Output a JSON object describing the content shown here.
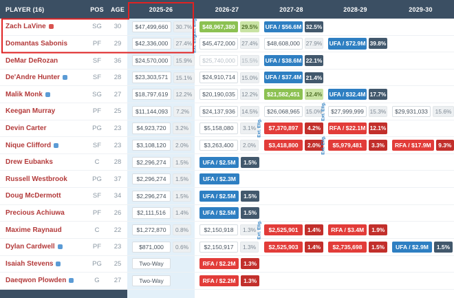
{
  "colors": {
    "header_bg": "#3b4f63",
    "annotation_red": "#e02222",
    "highlight_col": "#e3f0f9",
    "player_name": "#b33a3a",
    "green": "#8cc152",
    "blue": "#2e7fc2",
    "red": "#e23c39",
    "navy": "#42586c",
    "dark_red": "#c22f2b",
    "ext_elig": "#2e7fc2"
  },
  "header": {
    "player": "PLAYER (16)",
    "pos": "POS",
    "age": "AGE",
    "years": [
      "2025-26",
      "2026-27",
      "2027-28",
      "2028-29",
      "2029-30"
    ]
  },
  "labels": {
    "ext_elig": "Ext. Elig.",
    "two_way": "Two-Way"
  },
  "rows": [
    {
      "name": "Zach LaVine",
      "icon": "red",
      "pos": "SG",
      "age": "30",
      "cells": [
        {
          "value": "$47,499,660",
          "pct": "30.7%",
          "style": "plain"
        },
        {
          "value": "$48,967,380",
          "pct": "29.5%",
          "style": "green",
          "ext": true
        },
        {
          "value": "UFA / $56.6M",
          "pct": "32.5%",
          "style": "blue"
        },
        null,
        null
      ]
    },
    {
      "name": "Domantas Sabonis",
      "icon": null,
      "pos": "PF",
      "age": "29",
      "cells": [
        {
          "value": "$42,336,000",
          "pct": "27.4%",
          "style": "plain"
        },
        {
          "value": "$45,472,000",
          "pct": "27.4%",
          "style": "plain",
          "ext": true
        },
        {
          "value": "$48,608,000",
          "pct": "27.9%",
          "style": "plain"
        },
        {
          "value": "UFA / $72.9M",
          "pct": "39.8%",
          "style": "blue"
        },
        null
      ]
    },
    {
      "name": "DeMar DeRozan",
      "icon": null,
      "pos": "SF",
      "age": "36",
      "cells": [
        {
          "value": "$24,570,000",
          "pct": "15.9%",
          "style": "plain"
        },
        {
          "value": "$25,740,000",
          "pct": "15.5%",
          "style": "muted"
        },
        {
          "value": "UFA / $38.6M",
          "pct": "22.1%",
          "style": "blue"
        },
        null,
        null
      ]
    },
    {
      "name": "De'Andre Hunter",
      "icon": "blue",
      "pos": "SF",
      "age": "28",
      "cells": [
        {
          "value": "$23,303,571",
          "pct": "15.1%",
          "style": "plain"
        },
        {
          "value": "$24,910,714",
          "pct": "15.0%",
          "style": "plain"
        },
        {
          "value": "UFA / $37.4M",
          "pct": "21.4%",
          "style": "blue"
        },
        null,
        null
      ]
    },
    {
      "name": "Malik Monk",
      "icon": "blue",
      "pos": "SG",
      "age": "27",
      "cells": [
        {
          "value": "$18,797,619",
          "pct": "12.2%",
          "style": "plain"
        },
        {
          "value": "$20,190,035",
          "pct": "12.2%",
          "style": "plain"
        },
        {
          "value": "$21,582,451",
          "pct": "12.4%",
          "style": "green"
        },
        {
          "value": "UFA / $32.4M",
          "pct": "17.7%",
          "style": "blue"
        },
        null
      ]
    },
    {
      "name": "Keegan Murray",
      "icon": null,
      "pos": "PF",
      "age": "25",
      "cells": [
        {
          "value": "$11,144,093",
          "pct": "7.2%",
          "style": "plain"
        },
        {
          "value": "$24,137,936",
          "pct": "14.5%",
          "style": "plain"
        },
        {
          "value": "$26,068,965",
          "pct": "15.0%",
          "style": "plain"
        },
        {
          "value": "$27,999,999",
          "pct": "15.3%",
          "style": "plain",
          "ext": true
        },
        {
          "value": "$29,931,033",
          "pct": "15.6%",
          "style": "plain"
        }
      ]
    },
    {
      "name": "Devin Carter",
      "icon": null,
      "pos": "PG",
      "age": "23",
      "cells": [
        {
          "value": "$4,923,720",
          "pct": "3.2%",
          "style": "plain"
        },
        {
          "value": "$5,158,080",
          "pct": "3.1%",
          "style": "plain"
        },
        {
          "value": "$7,370,897",
          "pct": "4.2%",
          "style": "red",
          "ext": true
        },
        {
          "value": "RFA / $22.1M",
          "pct": "12.1%",
          "style": "red"
        },
        null
      ]
    },
    {
      "name": "Nique Clifford",
      "icon": "blue",
      "pos": "SF",
      "age": "23",
      "cells": [
        {
          "value": "$3,108,120",
          "pct": "2.0%",
          "style": "plain"
        },
        {
          "value": "$3,263,400",
          "pct": "2.0%",
          "style": "plain"
        },
        {
          "value": "$3,418,800",
          "pct": "2.0%",
          "style": "red"
        },
        {
          "value": "$5,979,481",
          "pct": "3.3%",
          "style": "red",
          "ext": true
        },
        {
          "value": "RFA / $17.9M",
          "pct": "9.3%",
          "style": "red"
        }
      ]
    },
    {
      "name": "Drew Eubanks",
      "icon": null,
      "pos": "C",
      "age": "28",
      "cells": [
        {
          "value": "$2,296,274",
          "pct": "1.5%",
          "style": "plain"
        },
        {
          "value": "UFA / $2.5M",
          "pct": "1.5%",
          "style": "blue"
        },
        null,
        null,
        null
      ]
    },
    {
      "name": "Russell Westbrook",
      "icon": null,
      "pos": "PG",
      "age": "37",
      "cells": [
        {
          "value": "$2,296,274",
          "pct": "1.5%",
          "style": "plain"
        },
        {
          "value": "UFA / $2.3M",
          "pct": null,
          "style": "blue"
        },
        null,
        null,
        null
      ]
    },
    {
      "name": "Doug McDermott",
      "icon": null,
      "pos": "SF",
      "age": "34",
      "cells": [
        {
          "value": "$2,296,274",
          "pct": "1.5%",
          "style": "plain"
        },
        {
          "value": "UFA / $2.5M",
          "pct": "1.5%",
          "style": "blue"
        },
        null,
        null,
        null
      ]
    },
    {
      "name": "Precious Achiuwa",
      "icon": null,
      "pos": "PF",
      "age": "26",
      "cells": [
        {
          "value": "$2,111,516",
          "pct": "1.4%",
          "style": "plain"
        },
        {
          "value": "UFA / $2.5M",
          "pct": "1.5%",
          "style": "blue"
        },
        null,
        null,
        null
      ]
    },
    {
      "name": "Maxime Raynaud",
      "icon": null,
      "pos": "C",
      "age": "22",
      "cells": [
        {
          "value": "$1,272,870",
          "pct": "0.8%",
          "style": "plain"
        },
        {
          "value": "$2,150,918",
          "pct": "1.3%",
          "style": "plain"
        },
        {
          "value": "$2,525,901",
          "pct": "1.4%",
          "style": "red",
          "ext": true
        },
        {
          "value": "RFA / $3.4M",
          "pct": "1.9%",
          "style": "red"
        },
        null
      ]
    },
    {
      "name": "Dylan Cardwell",
      "icon": "blue",
      "pos": "PF",
      "age": "23",
      "cells": [
        {
          "value": "$871,000",
          "pct": "0.6%",
          "style": "plain"
        },
        {
          "value": "$2,150,917",
          "pct": "1.3%",
          "style": "plain"
        },
        {
          "value": "$2,525,903",
          "pct": "1.4%",
          "style": "red"
        },
        {
          "value": "$2,735,698",
          "pct": "1.5%",
          "style": "red"
        },
        {
          "value": "UFA / $2.9M",
          "pct": "1.5%",
          "style": "blue"
        }
      ]
    },
    {
      "name": "Isaiah Stevens",
      "icon": "blue",
      "pos": "PG",
      "age": "25",
      "cells": [
        {
          "value": "Two-Way",
          "pct": null,
          "style": "plain"
        },
        {
          "value": "RFA / $2.2M",
          "pct": "1.3%",
          "style": "red"
        },
        null,
        null,
        null
      ]
    },
    {
      "name": "Daeqwon Plowden",
      "icon": "blue",
      "pos": "G",
      "age": "27",
      "cells": [
        {
          "value": "Two-Way",
          "pct": null,
          "style": "plain"
        },
        {
          "value": "RFA / $2.2M",
          "pct": "1.3%",
          "style": "red"
        },
        null,
        null,
        null
      ]
    }
  ]
}
